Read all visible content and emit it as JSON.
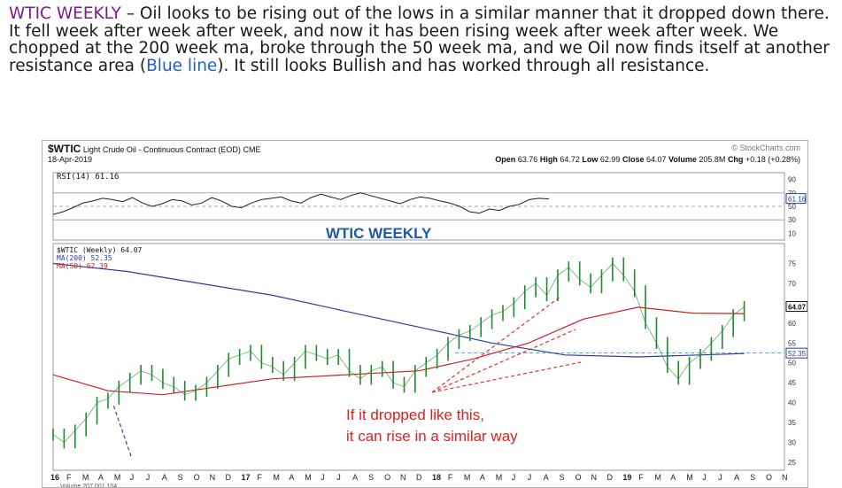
{
  "paragraph": {
    "lead": "WTIC WEEKLY",
    "body": " – Oil looks to be rising out of the lows in a similar manner that it dropped down there.  It fell week after week after week, and now it has been rising week after week after week.  We chopped at the 200 week ma, broke through the 50 week ma, and we Oil now finds itself at another resistance area (",
    "link": "Blue line",
    "tail": ").  It still looks Bullish and has worked through all resistance."
  },
  "chart_data": {
    "type": "line",
    "header": {
      "symbol": "$WTIC",
      "name": "Light Crude Oil - Continuous Contract (EOD)",
      "exchange": "CME",
      "watermark": "© StockCharts.com",
      "date": "18-Apr-2019",
      "open_label": "Open",
      "open": "63.76",
      "high_label": "High",
      "high": "64.72",
      "low_label": "Low",
      "low": "62.99",
      "close_label": "Close",
      "close": "64.07",
      "volume_label": "Volume",
      "volume": "205.8M",
      "chg_label": "Chg",
      "chg": "+0.18 (+0.28%)"
    },
    "rsi_panel": {
      "label": "RSI(14) 61.16",
      "ylim": [
        0,
        100
      ],
      "ticks": [
        "90",
        "70",
        "50",
        "30",
        "10"
      ],
      "value_tag": "61.16",
      "values": [
        38,
        42,
        48,
        55,
        58,
        62,
        60,
        57,
        63,
        55,
        50,
        54,
        60,
        58,
        52,
        55,
        63,
        58,
        50,
        48,
        55,
        60,
        62,
        64,
        58,
        55,
        63,
        68,
        64,
        60,
        66,
        70,
        66,
        62,
        58,
        54,
        60,
        64,
        62,
        58,
        55,
        50,
        42,
        40,
        46,
        44,
        50,
        53,
        60,
        62,
        61
      ]
    },
    "title_annotation": "WTIC WEEKLY",
    "price_panel": {
      "legend": [
        "$WTIC (Weekly) 64.07",
        "MA(200) 52.35",
        "MA(50) 62.39"
      ],
      "ylim": [
        23,
        80
      ],
      "ticks": [
        "75",
        "70",
        "60",
        "55",
        "50",
        "45",
        "40",
        "35",
        "30",
        "25"
      ],
      "last_value_tag": "64.07",
      "ma200_tag": "52.35",
      "resistance_level": 52.5,
      "x_index_range": [
        0,
        200
      ],
      "close": [
        [
          0,
          32
        ],
        [
          3,
          30
        ],
        [
          6,
          33
        ],
        [
          9,
          36
        ],
        [
          12,
          40
        ],
        [
          15,
          41
        ],
        [
          18,
          44
        ],
        [
          21,
          46
        ],
        [
          24,
          48
        ],
        [
          27,
          47
        ],
        [
          30,
          45
        ],
        [
          33,
          44
        ],
        [
          36,
          42
        ],
        [
          39,
          43
        ],
        [
          42,
          45
        ],
        [
          45,
          48
        ],
        [
          48,
          51
        ],
        [
          51,
          52
        ],
        [
          54,
          53
        ],
        [
          57,
          50
        ],
        [
          60,
          49
        ],
        [
          63,
          47
        ],
        [
          66,
          50
        ],
        [
          69,
          53
        ],
        [
          72,
          52
        ],
        [
          75,
          51
        ],
        [
          78,
          52
        ],
        [
          81,
          48
        ],
        [
          84,
          46
        ],
        [
          87,
          48
        ],
        [
          90,
          49
        ],
        [
          93,
          45
        ],
        [
          96,
          44
        ],
        [
          99,
          48
        ],
        [
          102,
          50
        ],
        [
          105,
          52
        ],
        [
          108,
          55
        ],
        [
          111,
          57
        ],
        [
          114,
          58
        ],
        [
          117,
          60
        ],
        [
          120,
          62
        ],
        [
          123,
          63
        ],
        [
          126,
          65
        ],
        [
          129,
          68
        ],
        [
          132,
          70
        ],
        [
          135,
          67
        ],
        [
          138,
          72
        ],
        [
          141,
          74
        ],
        [
          144,
          71
        ],
        [
          147,
          69
        ],
        [
          150,
          72
        ],
        [
          153,
          75
        ],
        [
          156,
          72
        ],
        [
          159,
          68
        ],
        [
          162,
          60
        ],
        [
          165,
          55
        ],
        [
          168,
          49
        ],
        [
          171,
          46
        ],
        [
          174,
          50
        ],
        [
          177,
          52
        ],
        [
          180,
          55
        ],
        [
          183,
          58
        ],
        [
          186,
          62
        ],
        [
          189,
          64.07
        ]
      ],
      "ma200": [
        [
          0,
          75
        ],
        [
          20,
          73
        ],
        [
          40,
          70
        ],
        [
          60,
          67
        ],
        [
          80,
          63
        ],
        [
          100,
          59
        ],
        [
          120,
          55
        ],
        [
          140,
          52
        ],
        [
          160,
          51.5
        ],
        [
          189,
          52.35
        ]
      ],
      "ma50": [
        [
          0,
          47
        ],
        [
          15,
          43
        ],
        [
          30,
          42
        ],
        [
          45,
          44
        ],
        [
          60,
          46
        ],
        [
          80,
          47
        ],
        [
          100,
          48
        ],
        [
          115,
          51
        ],
        [
          130,
          55
        ],
        [
          145,
          61
        ],
        [
          160,
          64
        ],
        [
          175,
          62.5
        ],
        [
          189,
          62.39
        ]
      ]
    },
    "annotation_text": [
      "If it dropped like this,",
      "it can rise in a similar way"
    ],
    "x_ticks": [
      "16",
      "F",
      "M",
      "A",
      "M",
      "J",
      "J",
      "A",
      "S",
      "O",
      "N",
      "D",
      "17",
      "F",
      "M",
      "A",
      "M",
      "J",
      "J",
      "A",
      "S",
      "O",
      "N",
      "D",
      "18",
      "F",
      "M",
      "A",
      "M",
      "J",
      "J",
      "A",
      "S",
      "O",
      "N",
      "D",
      "19",
      "F",
      "M",
      "A",
      "M",
      "J",
      "J",
      "A",
      "S",
      "O",
      "N"
    ],
    "bold_ticks": [
      "16",
      "17",
      "18",
      "19"
    ],
    "footer_fragment": "Volume 207,001,104",
    "colors": {
      "price": "#1f8a2e",
      "ma200": "#2e3a9a",
      "ma50": "#cc2222",
      "arrows": "#e53030",
      "annotation": "#e02020",
      "title": "#1f5aa6",
      "resistance": "#5aa0d8"
    }
  }
}
